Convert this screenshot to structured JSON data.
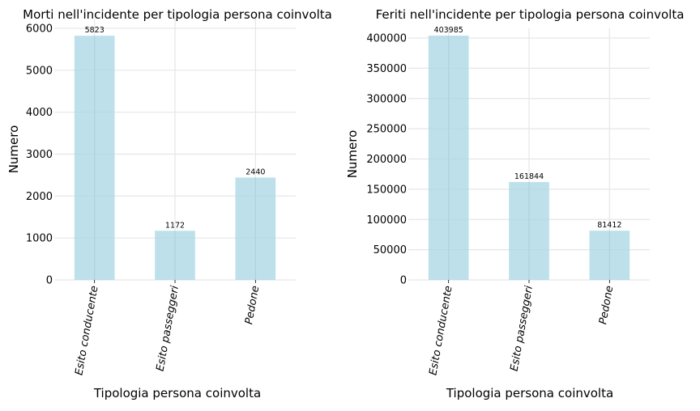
{
  "chart_data": [
    {
      "type": "bar",
      "title": "Morti nell'incidente per tipologia persona coinvolta",
      "xlabel": "Tipologia persona coinvolta",
      "ylabel": "Numero",
      "categories": [
        "Esito conducente",
        "Esito passeggeri",
        "Pedone"
      ],
      "values": [
        5823,
        1172,
        2440
      ],
      "ylim": [
        0,
        6000
      ],
      "yticks": [
        0,
        1000,
        2000,
        3000,
        4000,
        5000,
        6000
      ],
      "grid": true,
      "bar_color": "#add8e6"
    },
    {
      "type": "bar",
      "title": "Feriti nell'incidente per tipologia persona coinvolta",
      "xlabel": "Tipologia persona coinvolta",
      "ylabel": "Numero",
      "categories": [
        "Esito conducente",
        "Esito passeggeri",
        "Pedone"
      ],
      "values": [
        403985,
        161844,
        81412
      ],
      "ylim": [
        0,
        400000
      ],
      "yticks": [
        0,
        50000,
        100000,
        150000,
        200000,
        250000,
        300000,
        350000,
        400000
      ],
      "grid": true,
      "bar_color": "#add8e6"
    }
  ]
}
